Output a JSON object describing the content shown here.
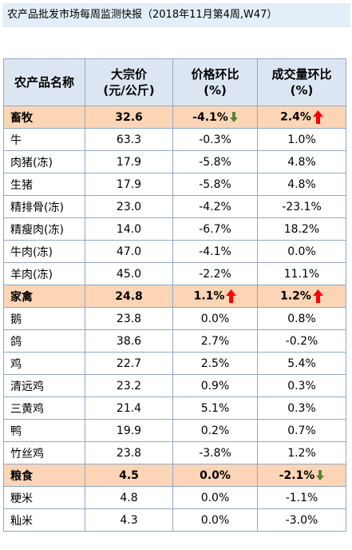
{
  "title": "农产品批发市场每周监测快报（2018年11月第4周,W47）",
  "header": {
    "name": "农产品名称",
    "price_line1": "大宗价",
    "price_line2": "(元/公斤)",
    "price_change_line1": "价格环比",
    "price_change_line2": "(%)",
    "volume_change_line1": "成交量环比",
    "volume_change_line2": "(%)"
  },
  "rows": [
    {
      "name": "畜牧",
      "price": "32.6",
      "price_change": "-4.1%",
      "volume_change": "2.4%",
      "category": true,
      "price_arrow": "down",
      "volume_arrow": "up"
    },
    {
      "name": "牛",
      "price": "63.3",
      "price_change": "-0.3%",
      "volume_change": "1.0%"
    },
    {
      "name": "肉猪(冻)",
      "price": "17.9",
      "price_change": "-5.8%",
      "volume_change": "4.8%"
    },
    {
      "name": "生猪",
      "price": "17.9",
      "price_change": "-5.8%",
      "volume_change": "4.8%"
    },
    {
      "name": "精排骨(冻)",
      "price": "23.0",
      "price_change": "-4.2%",
      "volume_change": "-23.1%"
    },
    {
      "name": "精瘦肉(冻)",
      "price": "14.0",
      "price_change": "-6.7%",
      "volume_change": "18.2%"
    },
    {
      "name": "牛肉(冻)",
      "price": "47.0",
      "price_change": "-4.1%",
      "volume_change": "0.0%"
    },
    {
      "name": "羊肉(冻)",
      "price": "45.0",
      "price_change": "-2.2%",
      "volume_change": "11.1%"
    },
    {
      "name": "家禽",
      "price": "24.8",
      "price_change": "1.1%",
      "volume_change": "1.2%",
      "category": true,
      "price_arrow": "up",
      "volume_arrow": "up"
    },
    {
      "name": "鹅",
      "price": "23.8",
      "price_change": "0.0%",
      "volume_change": "0.8%"
    },
    {
      "name": "鸽",
      "price": "38.6",
      "price_change": "2.7%",
      "volume_change": "-0.2%"
    },
    {
      "name": "鸡",
      "price": "22.7",
      "price_change": "2.5%",
      "volume_change": "5.4%"
    },
    {
      "name": "清远鸡",
      "price": "23.2",
      "price_change": "0.9%",
      "volume_change": "0.3%"
    },
    {
      "name": "三黄鸡",
      "price": "21.4",
      "price_change": "5.1%",
      "volume_change": "0.3%"
    },
    {
      "name": "鸭",
      "price": "19.9",
      "price_change": "0.2%",
      "volume_change": "0.7%"
    },
    {
      "name": "竹丝鸡",
      "price": "23.8",
      "price_change": "-3.8%",
      "volume_change": "1.2%"
    },
    {
      "name": "粮食",
      "price": "4.5",
      "price_change": "0.0%",
      "volume_change": "-2.1%",
      "category": true,
      "volume_arrow": "down"
    },
    {
      "name": "粳米",
      "price": "4.8",
      "price_change": "0.0%",
      "volume_change": "-1.1%"
    },
    {
      "name": "籼米",
      "price": "4.3",
      "price_change": "0.0%",
      "volume_change": "-3.0%"
    }
  ],
  "colors": {
    "title_bg": "#e3eef9",
    "header_bg": "#dce6f2",
    "category_bg": "#fbd5b5",
    "border": "#8ea9c8",
    "arrow_up": "#ff0000",
    "arrow_down": "#548235"
  },
  "icons": {
    "up": "red-up-arrow-icon",
    "down": "green-down-arrow-icon"
  }
}
